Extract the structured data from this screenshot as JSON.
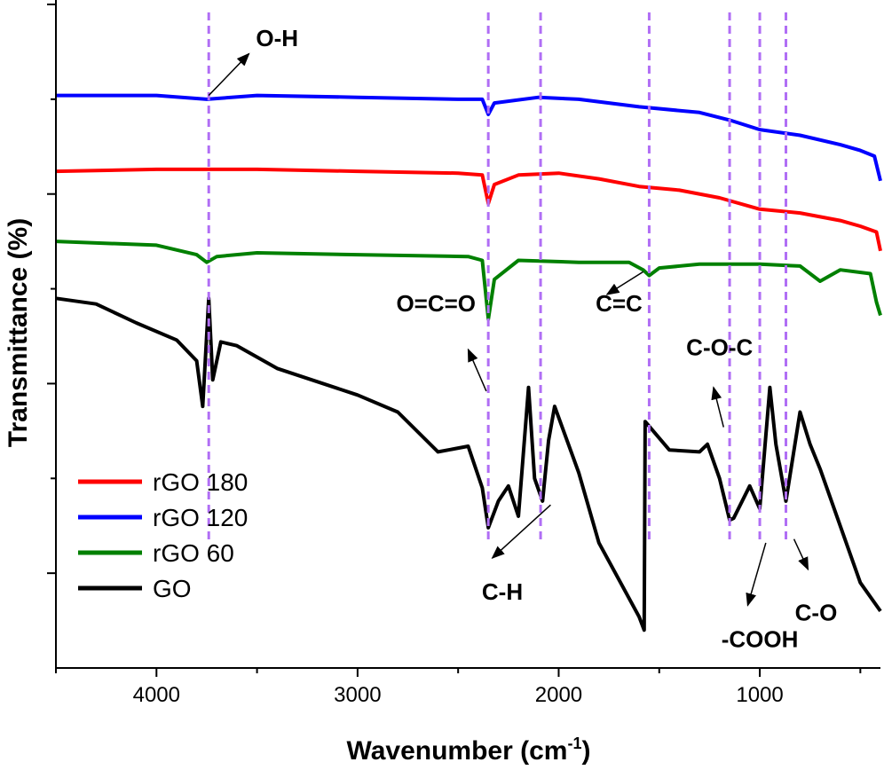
{
  "chart_data": {
    "type": "line",
    "xlabel": "Wavenumber (cm",
    "xlabel_sup": "-1",
    "xlabel_end": ")",
    "ylabel": "Transmittance (%)",
    "xlim": [
      4500,
      400
    ],
    "x_reversed": true,
    "ylim": [
      0,
      3.5
    ],
    "y_tick_labels_shown": false,
    "x_ticks": [
      4000,
      3000,
      2000,
      1000
    ],
    "x_tick_labels": [
      "4000",
      "3000",
      "2000",
      "1000"
    ],
    "legend_position": "bottom-left",
    "legend": [
      "rGO 180",
      "rGO 120",
      "rGO 60",
      "GO"
    ],
    "series": [
      {
        "name": "rGO 180",
        "color": "#ff0000",
        "points": [
          [
            4500,
            2.62
          ],
          [
            4000,
            2.63
          ],
          [
            3500,
            2.63
          ],
          [
            3000,
            2.62
          ],
          [
            2500,
            2.61
          ],
          [
            2380,
            2.6
          ],
          [
            2350,
            2.45
          ],
          [
            2320,
            2.55
          ],
          [
            2200,
            2.6
          ],
          [
            2000,
            2.61
          ],
          [
            1800,
            2.58
          ],
          [
            1600,
            2.54
          ],
          [
            1400,
            2.52
          ],
          [
            1200,
            2.48
          ],
          [
            1000,
            2.42
          ],
          [
            800,
            2.4
          ],
          [
            600,
            2.36
          ],
          [
            500,
            2.33
          ],
          [
            420,
            2.3
          ],
          [
            400,
            2.2
          ]
        ]
      },
      {
        "name": "rGO 120",
        "color": "#0000ff",
        "points": [
          [
            4500,
            3.02
          ],
          [
            4000,
            3.02
          ],
          [
            3750,
            3.0
          ],
          [
            3500,
            3.02
          ],
          [
            3000,
            3.01
          ],
          [
            2500,
            3.0
          ],
          [
            2380,
            3.0
          ],
          [
            2350,
            2.92
          ],
          [
            2320,
            2.98
          ],
          [
            2100,
            3.01
          ],
          [
            1900,
            3.0
          ],
          [
            1600,
            2.96
          ],
          [
            1300,
            2.93
          ],
          [
            1150,
            2.89
          ],
          [
            1000,
            2.84
          ],
          [
            800,
            2.81
          ],
          [
            600,
            2.76
          ],
          [
            500,
            2.73
          ],
          [
            430,
            2.7
          ],
          [
            400,
            2.57
          ]
        ]
      },
      {
        "name": "rGO 60",
        "color": "#008000",
        "points": [
          [
            4500,
            2.25
          ],
          [
            4000,
            2.23
          ],
          [
            3800,
            2.18
          ],
          [
            3750,
            2.14
          ],
          [
            3700,
            2.17
          ],
          [
            3500,
            2.19
          ],
          [
            3000,
            2.18
          ],
          [
            2450,
            2.17
          ],
          [
            2380,
            2.15
          ],
          [
            2350,
            1.84
          ],
          [
            2320,
            2.05
          ],
          [
            2200,
            2.15
          ],
          [
            1900,
            2.14
          ],
          [
            1650,
            2.14
          ],
          [
            1580,
            2.1
          ],
          [
            1550,
            2.07
          ],
          [
            1500,
            2.11
          ],
          [
            1300,
            2.13
          ],
          [
            1000,
            2.13
          ],
          [
            800,
            2.12
          ],
          [
            700,
            2.04
          ],
          [
            600,
            2.1
          ],
          [
            450,
            2.08
          ],
          [
            420,
            1.93
          ],
          [
            400,
            1.86
          ]
        ]
      },
      {
        "name": "GO",
        "color": "#000000",
        "points": [
          [
            4500,
            1.95
          ],
          [
            4300,
            1.92
          ],
          [
            4100,
            1.82
          ],
          [
            3900,
            1.73
          ],
          [
            3800,
            1.62
          ],
          [
            3770,
            1.38
          ],
          [
            3740,
            1.95
          ],
          [
            3720,
            1.52
          ],
          [
            3680,
            1.72
          ],
          [
            3600,
            1.7
          ],
          [
            3400,
            1.58
          ],
          [
            3000,
            1.44
          ],
          [
            2800,
            1.35
          ],
          [
            2600,
            1.14
          ],
          [
            2450,
            1.17
          ],
          [
            2380,
            0.95
          ],
          [
            2350,
            0.74
          ],
          [
            2300,
            0.88
          ],
          [
            2250,
            0.96
          ],
          [
            2200,
            0.8
          ],
          [
            2150,
            1.48
          ],
          [
            2120,
            1.0
          ],
          [
            2080,
            0.88
          ],
          [
            2050,
            1.2
          ],
          [
            2020,
            1.38
          ],
          [
            1900,
            1.03
          ],
          [
            1800,
            0.66
          ],
          [
            1600,
            0.27
          ],
          [
            1575,
            0.2
          ],
          [
            1570,
            1.3
          ],
          [
            1450,
            1.15
          ],
          [
            1300,
            1.14
          ],
          [
            1260,
            1.18
          ],
          [
            1200,
            1.0
          ],
          [
            1150,
            0.78
          ],
          [
            1130,
            0.79
          ],
          [
            1050,
            0.96
          ],
          [
            1000,
            0.84
          ],
          [
            950,
            1.48
          ],
          [
            920,
            1.18
          ],
          [
            870,
            0.88
          ],
          [
            800,
            1.35
          ],
          [
            750,
            1.18
          ],
          [
            700,
            1.05
          ],
          [
            500,
            0.45
          ],
          [
            400,
            0.3
          ]
        ]
      }
    ],
    "reference_lines": [
      3740,
      2350,
      2090,
      1550,
      1150,
      1000,
      870
    ],
    "reference_line_color": "#b06ef5",
    "annotations": [
      {
        "text": "O-H",
        "x": 3400,
        "y": 3.28,
        "arrow_from": [
          3740,
          3.02
        ],
        "arrow_to": [
          3540,
          3.24
        ]
      },
      {
        "text": "O=C=O",
        "x": 2610,
        "y": 1.88,
        "arrow_from": [
          2360,
          1.46
        ],
        "arrow_to": [
          2450,
          1.68
        ]
      },
      {
        "text": "C=C",
        "x": 1700,
        "y": 1.88,
        "arrow_from": [
          1580,
          2.09
        ],
        "arrow_to": [
          1760,
          1.97
        ]
      },
      {
        "text": "C-H",
        "x": 2280,
        "y": 0.36,
        "arrow_from": [
          2040,
          0.86
        ],
        "arrow_to": [
          2330,
          0.58
        ]
      },
      {
        "text": "C-O-C",
        "x": 1200,
        "y": 1.65,
        "arrow_from": [
          1180,
          1.27
        ],
        "arrow_to": [
          1230,
          1.48
        ]
      },
      {
        "text": "-COOH",
        "x": 1000,
        "y": 0.11,
        "arrow_from": [
          970,
          0.66
        ],
        "arrow_to": [
          1060,
          0.33
        ]
      },
      {
        "text": "C-O",
        "x": 720,
        "y": 0.25,
        "arrow_from": [
          830,
          0.68
        ],
        "arrow_to": [
          760,
          0.52
        ]
      }
    ]
  }
}
